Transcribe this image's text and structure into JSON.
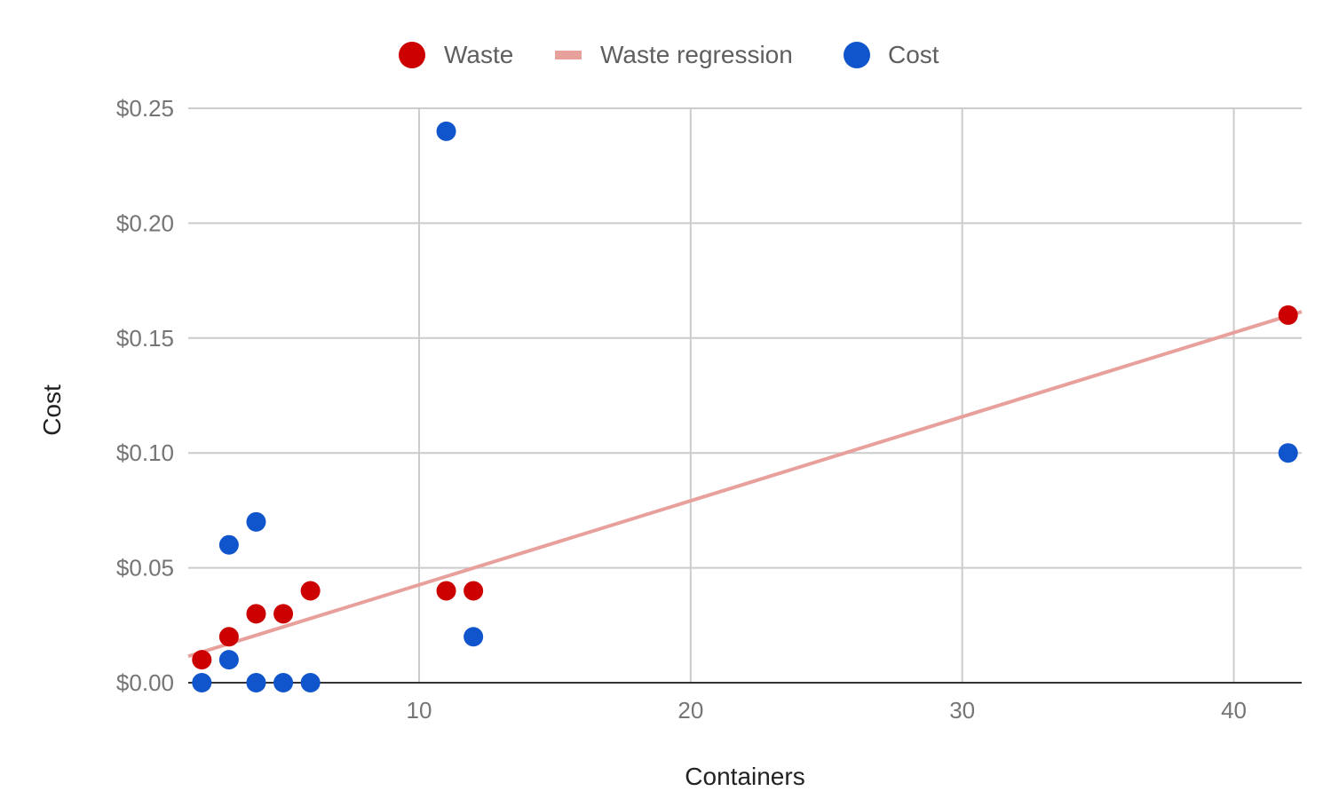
{
  "chart_data": {
    "type": "scatter",
    "xlabel": "Containers",
    "ylabel": "Cost",
    "xlim": [
      1.5,
      42.5
    ],
    "ylim": [
      0,
      0.25
    ],
    "x_ticks": [
      {
        "value": 10,
        "label": "10"
      },
      {
        "value": 20,
        "label": "20"
      },
      {
        "value": 30,
        "label": "30"
      },
      {
        "value": 40,
        "label": "40"
      }
    ],
    "y_ticks": [
      {
        "value": 0,
        "label": "$0.00"
      },
      {
        "value": 0.05,
        "label": "$0.05"
      },
      {
        "value": 0.1,
        "label": "$0.10"
      },
      {
        "value": 0.15,
        "label": "$0.15"
      },
      {
        "value": 0.2,
        "label": "$0.20"
      },
      {
        "value": 0.25,
        "label": "$0.25"
      }
    ],
    "grid": true,
    "legend_position": "top",
    "legend": [
      {
        "name": "Waste",
        "marker": "circle",
        "color": "#cc0000"
      },
      {
        "name": "Waste regression",
        "marker": "line",
        "color": "#e8a09c"
      },
      {
        "name": "Cost",
        "marker": "circle",
        "color": "#1155cc"
      }
    ],
    "series": [
      {
        "name": "Waste",
        "color": "#cc0000",
        "points": [
          {
            "x": 2,
            "y": 0.01
          },
          {
            "x": 3,
            "y": 0.02
          },
          {
            "x": 4,
            "y": 0.03
          },
          {
            "x": 5,
            "y": 0.03
          },
          {
            "x": 6,
            "y": 0.04
          },
          {
            "x": 11,
            "y": 0.04
          },
          {
            "x": 12,
            "y": 0.04
          },
          {
            "x": 42,
            "y": 0.16
          }
        ]
      },
      {
        "name": "Cost",
        "color": "#1155cc",
        "points": [
          {
            "x": 2,
            "y": 0.0
          },
          {
            "x": 3,
            "y": 0.06
          },
          {
            "x": 3,
            "y": 0.01
          },
          {
            "x": 4,
            "y": 0.07
          },
          {
            "x": 4,
            "y": 0.0
          },
          {
            "x": 5,
            "y": 0.0
          },
          {
            "x": 6,
            "y": 0.0
          },
          {
            "x": 11,
            "y": 0.24
          },
          {
            "x": 12,
            "y": 0.02
          },
          {
            "x": 42,
            "y": 0.1
          }
        ]
      }
    ],
    "trendline": {
      "name": "Waste regression",
      "color": "#e8a09c",
      "start": {
        "x": 1.5,
        "y": 0.0115
      },
      "end": {
        "x": 42.5,
        "y": 0.1615
      }
    }
  }
}
